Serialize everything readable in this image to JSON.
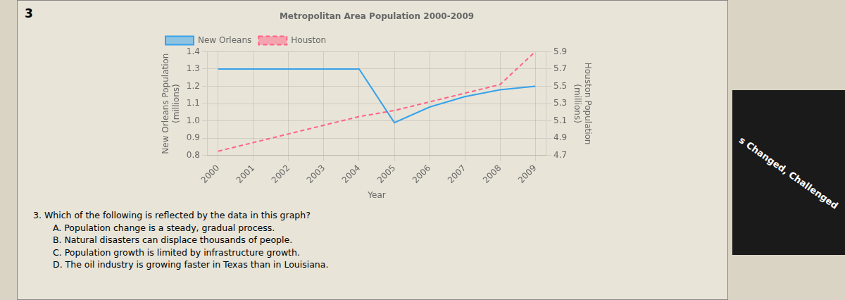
{
  "chart_data": {
    "type": "line",
    "title": "Metropolitan Area Population 2000-2009",
    "x_label": "Year",
    "y_label": "New Orleans Population\n(millions)",
    "y2_label": "Houston Population\n(millions)",
    "x": [
      2000,
      2001,
      2002,
      2003,
      2004,
      2005,
      2006,
      2007,
      2008,
      2009
    ],
    "series": [
      {
        "name": "New Orleans",
        "values": [
          1.3,
          1.3,
          1.3,
          1.3,
          1.3,
          0.99,
          1.08,
          1.14,
          1.18,
          1.2
        ],
        "line_style": "solid"
      },
      {
        "name": "Houston",
        "values": [
          4.75,
          4.85,
          4.95,
          5.05,
          5.15,
          5.22,
          5.32,
          5.42,
          5.52,
          5.9
        ],
        "line_style": "dashed",
        "axis": "y2"
      }
    ],
    "xlim": [
      1999.7,
      2009.3
    ],
    "xticks": [
      2000,
      2001,
      2002,
      2003,
      2004,
      2005,
      2006,
      2007,
      2008,
      2009
    ],
    "ylim": [
      0.8,
      1.4
    ],
    "yticks": [
      0.8,
      0.9,
      {
        "value": 1.0,
        "label": "1.0"
      },
      1.1,
      1.2,
      1.3,
      1.4
    ],
    "y2lim": [
      4.7,
      5.9
    ],
    "y2ticks": [
      4.7,
      4.9,
      5.1,
      5.3,
      5.5,
      5.7,
      5.9
    ],
    "grid": true,
    "legend": "upper left",
    "annotations": [
      "3",
      "3. Which of the following is reflected by the data in this graph?",
      "A.  Population change is a steady, gradual process.",
      "B.  Natural disasters can displace thousands of people.",
      "C.  Population growth is limited by infrastructure growth.",
      "D.  The oil industry is growing faster in Texas than in Louisiana.",
      "s Changed, Challenged"
    ]
  }
}
